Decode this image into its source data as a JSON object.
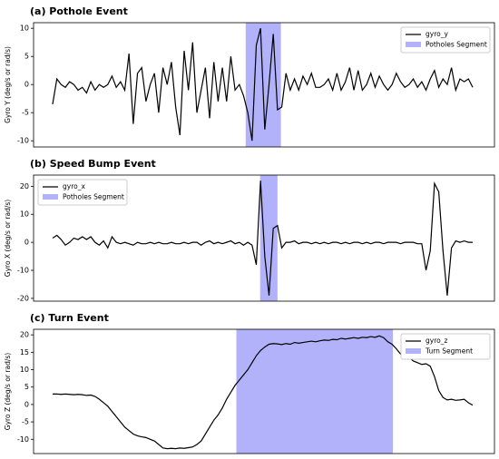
{
  "chart_data": [
    {
      "type": "line",
      "title": "(a) Pothole Event",
      "ylabel": "Gyro Y (deg/s or rad/s)",
      "ylim": [
        -11.1,
        11
      ],
      "yticks": [
        -10,
        -5,
        0,
        5,
        10
      ],
      "legend": "upper right",
      "series": [
        {
          "name": "gyro_y",
          "color": "#000000",
          "values": [
            -3.5,
            1,
            0,
            -0.5,
            0.5,
            0,
            -1,
            -0.5,
            -1.5,
            0.5,
            -1,
            0,
            -0.5,
            0,
            1.5,
            -0.5,
            0.5,
            -1,
            5.5,
            -7,
            2,
            3,
            -3,
            0,
            2,
            -5,
            3,
            0,
            4,
            -4,
            -9,
            6,
            -1,
            7.5,
            -5,
            -1,
            3,
            -6,
            4,
            -3,
            3,
            -3,
            5,
            -1,
            0,
            -2,
            -5,
            -10,
            7,
            10,
            -8,
            0,
            9,
            -4.5,
            -4,
            2,
            -1,
            1,
            -1,
            1.5,
            0,
            2,
            -0.5,
            -0.5,
            0,
            1,
            -1,
            2,
            -1,
            0.5,
            3,
            -1,
            2.5,
            -1,
            0,
            2,
            -0.5,
            1.5,
            0,
            -1,
            0,
            2,
            0.5,
            -0.5,
            0,
            1,
            -0.5,
            0.5,
            -1,
            1,
            2.5,
            -0.5,
            1,
            0,
            3,
            -1,
            1,
            0.5,
            1,
            -0.5
          ]
        }
      ],
      "segment": {
        "name": "Potholes Segment",
        "color": "#b2b2fa",
        "span": [
          45.5,
          53.8
        ]
      }
    },
    {
      "type": "line",
      "title": "(b) Speed Bump Event",
      "ylabel": "Gyro X (deg/s or rad/s)",
      "ylim": [
        -21,
        24
      ],
      "yticks": [
        -20,
        -10,
        0,
        10,
        20
      ],
      "legend": "upper left",
      "series": [
        {
          "name": "gyro_x",
          "color": "#000000",
          "values": [
            1.5,
            2.5,
            1,
            -1,
            0,
            1.5,
            1,
            2,
            1,
            2,
            0,
            -1,
            0.5,
            -2,
            2,
            0,
            -0.5,
            0,
            -0.5,
            -1,
            0,
            -0.5,
            -0.5,
            0,
            -0.5,
            0,
            -0.5,
            -0.5,
            0,
            -0.5,
            -0.5,
            0,
            -0.5,
            0,
            0,
            -1,
            0,
            0.5,
            -0.5,
            0,
            -0.5,
            0,
            0.5,
            -0.5,
            0,
            -1,
            0,
            -1,
            -8,
            22,
            -5,
            -19,
            5,
            6,
            -2,
            0,
            0,
            0.5,
            -0.5,
            0,
            0,
            -0.5,
            0,
            -0.5,
            0,
            -0.5,
            0,
            0,
            -0.5,
            0,
            -0.5,
            0,
            0,
            -0.5,
            0,
            -0.5,
            0,
            0,
            -0.5,
            0,
            0,
            0,
            -0.5,
            0,
            0,
            0,
            -0.5,
            -0.5,
            -10,
            -3,
            21,
            18,
            -3,
            -19,
            -2,
            0.5,
            0,
            0.5,
            0,
            0
          ]
        }
      ],
      "segment": {
        "name": "Potholes Segment",
        "color": "#b2b2fa",
        "span": [
          48.9,
          53
        ]
      }
    },
    {
      "type": "line",
      "title": "(c) Turn Event",
      "ylabel": "Gyro Z (deg/s or rad/s)",
      "ylim": [
        -14.1,
        21.6
      ],
      "yticks": [
        -10,
        -5,
        0,
        5,
        10,
        15,
        20
      ],
      "legend": "upper right",
      "series": [
        {
          "name": "gyro_z",
          "color": "#000000",
          "values": [
            3,
            3,
            2.9,
            3,
            2.9,
            2.8,
            2.9,
            2.8,
            2.6,
            2.7,
            2.3,
            1.5,
            0.5,
            -0.5,
            -2,
            -3.5,
            -5,
            -6.5,
            -7.5,
            -8.5,
            -9,
            -9.3,
            -9.5,
            -10,
            -10.5,
            -11.5,
            -12.5,
            -12.7,
            -12.6,
            -12.7,
            -12.5,
            -12.6,
            -12.4,
            -12.2,
            -11.5,
            -10.5,
            -8.5,
            -6.5,
            -4.5,
            -3,
            -1,
            1.5,
            3.5,
            5.5,
            7,
            8.5,
            10,
            12,
            14,
            15.5,
            16.5,
            17.3,
            17.5,
            17.4,
            17.2,
            17.5,
            17.3,
            17.8,
            17.6,
            17.8,
            18,
            18.2,
            18,
            18.3,
            18.5,
            18.4,
            18.7,
            18.6,
            19,
            18.8,
            19,
            19.2,
            19,
            19.3,
            19.2,
            19.5,
            19.3,
            19.7,
            19.2,
            18,
            17.3,
            16,
            14.5,
            14,
            13.5,
            12.5,
            12,
            11.5,
            11.7,
            11,
            8,
            4,
            2,
            1.3,
            1.5,
            1.2,
            1.3,
            1.5,
            0.5,
            -0.2
          ]
        }
      ],
      "segment": {
        "name": "Turn Segment",
        "color": "#b2b2fa",
        "span": [
          43.3,
          80.2
        ]
      }
    }
  ]
}
